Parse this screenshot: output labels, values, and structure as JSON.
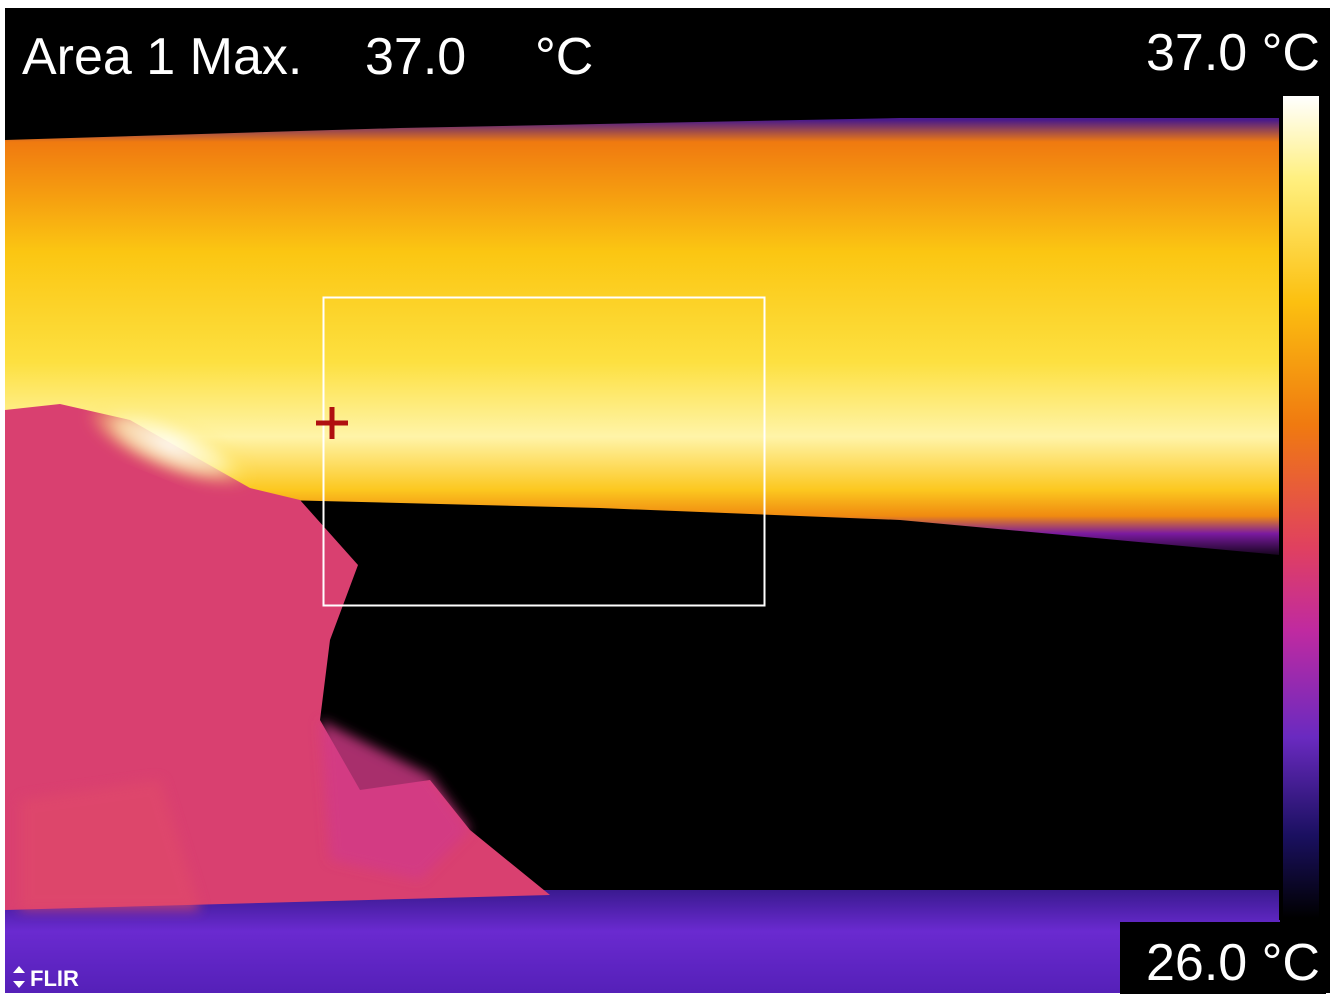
{
  "measurement": {
    "label": "Area 1 Max.",
    "value": "37.0",
    "unit": "°C"
  },
  "scale": {
    "max": "37.0 °C",
    "min": "26.0 °C"
  },
  "logo": "FLIR"
}
